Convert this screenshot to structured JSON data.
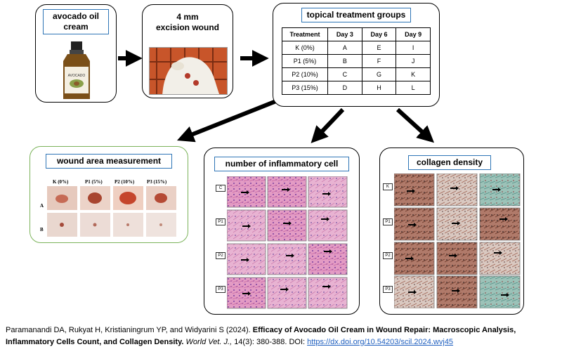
{
  "boxes": {
    "avocado": {
      "title_line1": "avocado oil",
      "title_line2": "cream",
      "bottle_label": "AVOCADO"
    },
    "excision": {
      "title_line1": "4 mm",
      "title_line2": "excision wound"
    },
    "groups": {
      "title": "topical treatment groups",
      "headers": [
        "Treatment",
        "Day 3",
        "Day 6",
        "Day 9"
      ],
      "rows": [
        [
          "K (0%)",
          "A",
          "E",
          "I"
        ],
        [
          "P1 (5%)",
          "B",
          "F",
          "J"
        ],
        [
          "P2 (10%)",
          "C",
          "G",
          "K"
        ],
        [
          "P3 (15%)",
          "D",
          "H",
          "L"
        ]
      ]
    },
    "wound_area": {
      "title": "wound area measurement",
      "col_labels": [
        "K (0%)",
        "P1 (5%)",
        "P2 (10%)",
        "P3 (15%)"
      ],
      "row_labels": [
        "A",
        "B"
      ]
    },
    "inflammatory": {
      "title": "number of inflammatory cell",
      "row_labels": [
        "C",
        "P1",
        "P2",
        "P3"
      ]
    },
    "collagen": {
      "title": "collagen density",
      "row_labels": [
        "K",
        "P1",
        "P2",
        "P3"
      ]
    }
  },
  "caption": {
    "authors": "Paramanandi DA, Rukyat H, Kristianingrum YP, and Widyarini S (2024).",
    "title": "Efficacy of Avocado Oil Cream in Wound Repair: Macroscopic Analysis, Inflammatory Cells Count, and Collagen Density.",
    "journal": "World Vet. J.,",
    "issue": "14(3): 380-388. DOI:",
    "doi": "https://dx.doi.org/10.54203/scil.2024.wvj45"
  },
  "colors": {
    "title_border": "#2e75b6",
    "green_border": "#7bb35a",
    "he_stain": "#d46aa8",
    "trichrome_blue": "#8fb7b0"
  }
}
